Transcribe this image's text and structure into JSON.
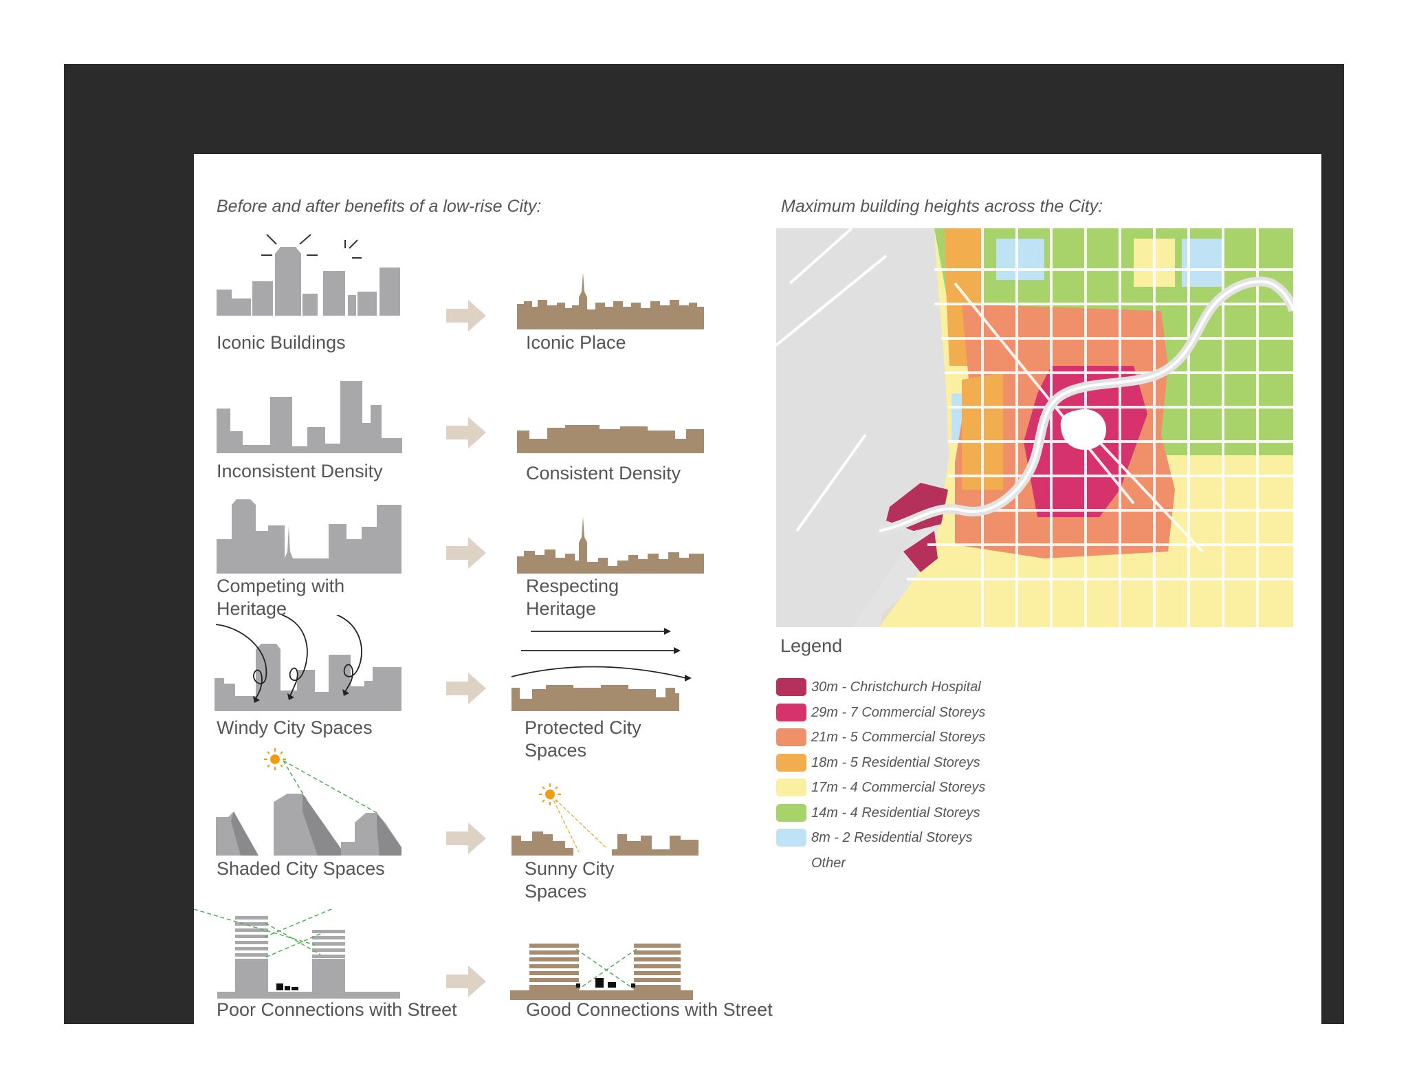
{
  "left_heading": "Before and after benefits of a low-rise City:",
  "right_heading": "Maximum building heights across the City:",
  "comparisons": [
    {
      "before": "Iconic Buildings",
      "after": "Iconic Place"
    },
    {
      "before": "Inconsistent Density",
      "after": "Consistent Density"
    },
    {
      "before": "Competing with\nHeritage",
      "after": "Respecting\nHeritage"
    },
    {
      "before": "Windy City Spaces",
      "after": "Protected City\nSpaces"
    },
    {
      "before": "Shaded City Spaces",
      "after": "Sunny City\nSpaces"
    },
    {
      "before": "Poor Connections with Street",
      "after": "Good Connections with Street"
    }
  ],
  "legend": {
    "title": "Legend",
    "items": [
      {
        "label": "30m - Christchurch Hospital",
        "color": "#b5305a"
      },
      {
        "label": "29m - 7 Commercial Storeys",
        "color": "#d6336c"
      },
      {
        "label": "21m - 5 Commercial Storeys",
        "color": "#f0906a"
      },
      {
        "label": "18m - 5 Residential Storeys",
        "color": "#f2ad4e"
      },
      {
        "label": "17m - 4 Commercial Storeys",
        "color": "#fbf0a2"
      },
      {
        "label": "14m - 4 Residential Storeys",
        "color": "#a8d26a"
      },
      {
        "label": "8m - 2 Residential Storeys",
        "color": "#bfe3f4"
      },
      {
        "label": "Other",
        "color": "#e6dccb"
      }
    ]
  },
  "colors": {
    "frame": "#2b2b2b",
    "before_buildings": "#a8a8aa",
    "after_buildings": "#a58c6f",
    "arrow": "#ddd2c4",
    "sun": "#f39c12",
    "sightline": "#4caf50"
  }
}
